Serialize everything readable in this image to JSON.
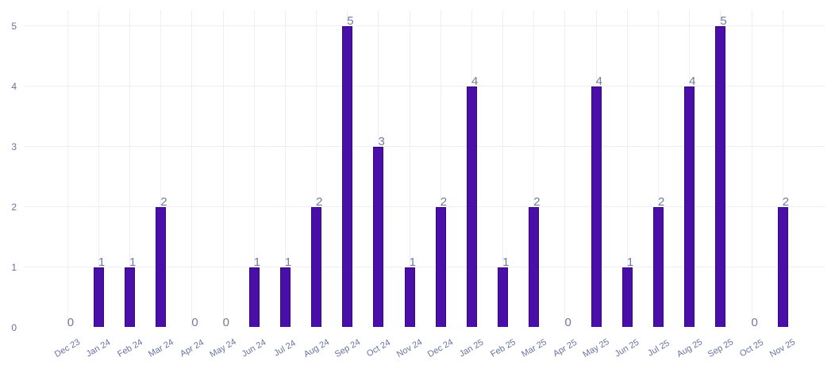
{
  "chart_data": {
    "type": "bar",
    "categories": [
      "Dec 23",
      "Jan 24",
      "Feb 24",
      "Mar 24",
      "Apr 24",
      "May 24",
      "Jun 24",
      "Jul 24",
      "Aug 24",
      "Sep 24",
      "Oct 24",
      "Nov 24",
      "Dec 24",
      "Jan 25",
      "Feb 25",
      "Mar 25",
      "Apr 25",
      "May 25",
      "Jun 25",
      "Jul 25",
      "Aug 25",
      "Sep 25",
      "Oct 25",
      "Nov 25"
    ],
    "values": [
      0,
      1,
      1,
      2,
      0,
      0,
      1,
      1,
      2,
      5,
      3,
      1,
      2,
      4,
      1,
      2,
      0,
      4,
      1,
      2,
      4,
      5,
      0,
      2
    ],
    "value_labels": [
      "0",
      "1",
      "1",
      "2",
      "0",
      "0",
      "1",
      "1",
      "2",
      "5",
      "3",
      "1",
      "2",
      "4",
      "1",
      "2",
      "0",
      "4",
      "1",
      "2",
      "4",
      "5",
      "0",
      "2"
    ],
    "title": "",
    "xlabel": "",
    "ylabel": "",
    "ylim": [
      0,
      5
    ],
    "yticks": [
      0,
      1,
      2,
      3,
      4,
      5
    ],
    "ytick_labels": [
      "0",
      "1",
      "2",
      "3",
      "4",
      "5"
    ],
    "grid": "on",
    "legend": "none",
    "x_tick_rotation_deg": -30,
    "colors": {
      "background": "#ffffff",
      "bar_fill": "#4a0fa8",
      "bar_border": "#380880",
      "gridline": "#efeef8",
      "axis_tick_label": "#66739f",
      "value_label": "#707c99"
    }
  }
}
